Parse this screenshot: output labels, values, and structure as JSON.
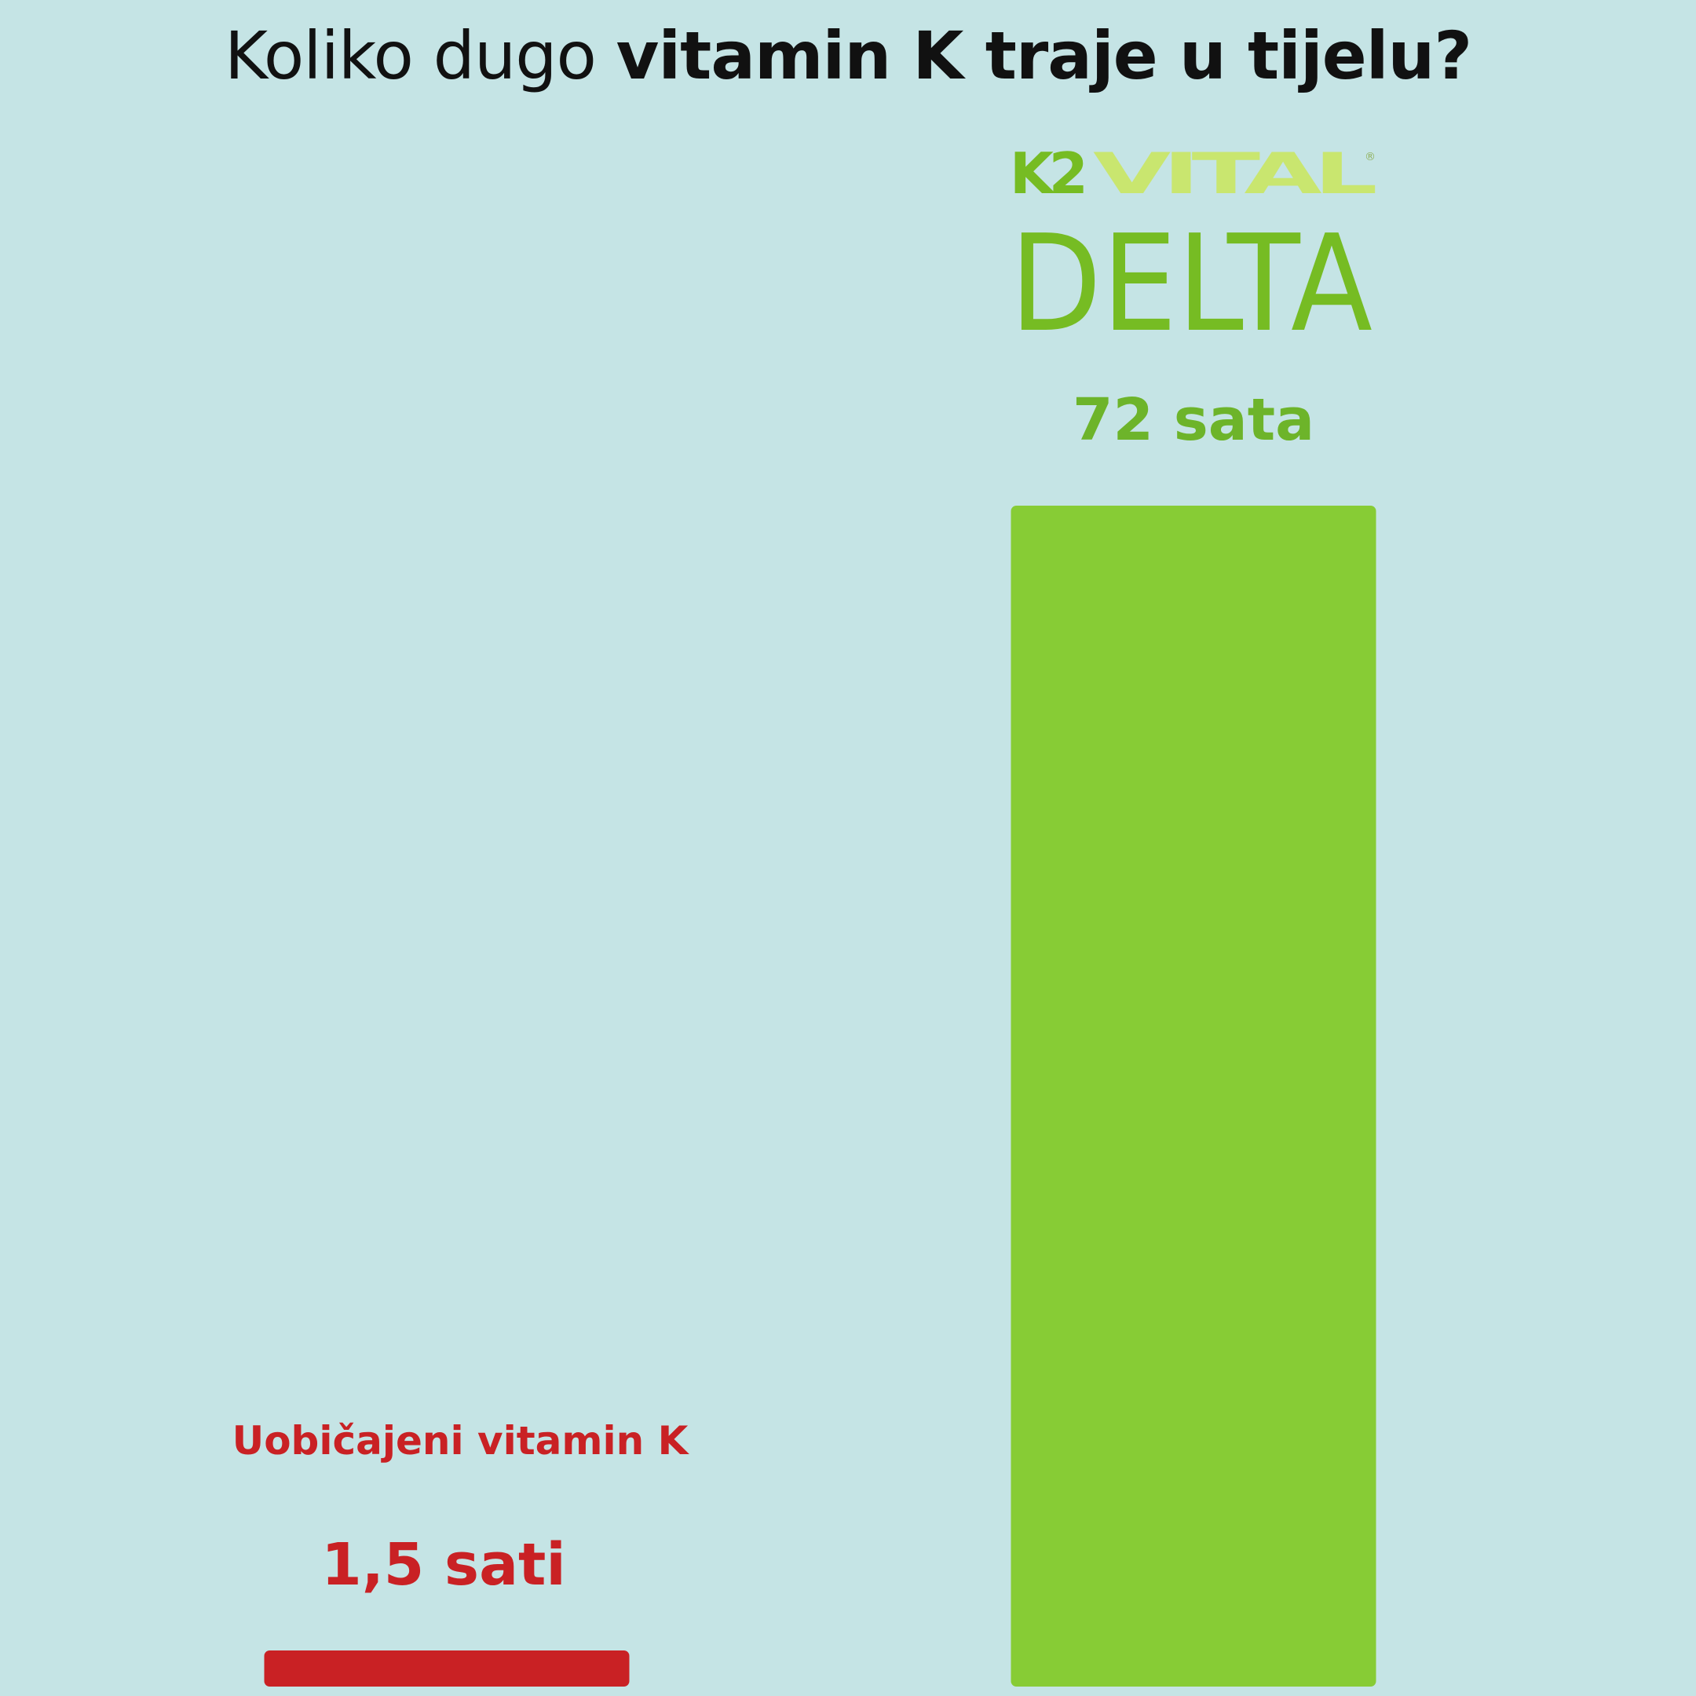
{
  "title": {
    "part_regular": "Koliko dugo ",
    "part_bold": "vitamin K traje u tijelu?"
  },
  "logo": {
    "text_top_dark": "K2",
    "text_top_light": "VITAL",
    "text_bottom": "DELTA",
    "registered": "®"
  },
  "colors": {
    "background": "#c5e4e5",
    "green_bar": "#87cc35",
    "green_text": "#6db42a",
    "green_dark": "#76bc23",
    "green_light": "#c9e66f",
    "red": "#c92124"
  },
  "chart_data": {
    "type": "bar",
    "title": "Koliko dugo vitamin K traje u tijelu?",
    "categories": [
      "Uobičajeni vitamin K",
      "K2VITAL DELTA"
    ],
    "values": [
      1.5,
      72
    ],
    "value_labels": [
      "1,5 sati",
      "72 sata"
    ],
    "unit": "sati",
    "ylim": [
      0,
      72
    ],
    "grid": false,
    "legend": "none"
  }
}
